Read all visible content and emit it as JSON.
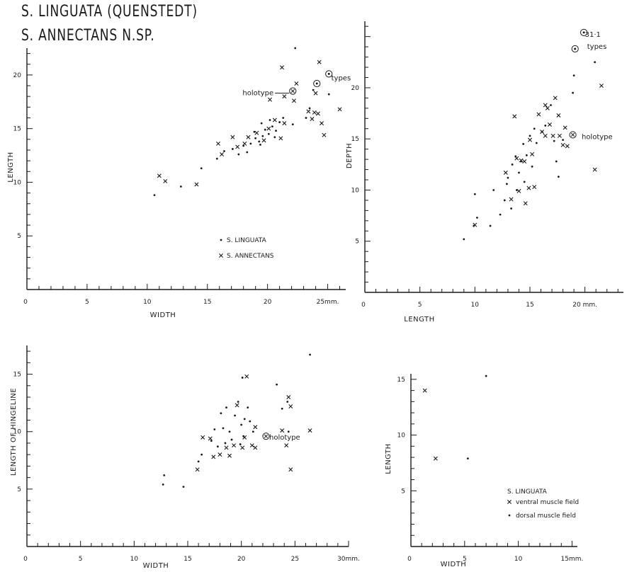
{
  "titles": {
    "line1": "S. LINGUATA (QUENSTEDT)",
    "line2": "S. ANNECTANS N.SP."
  },
  "colors": {
    "ink": "#1b1b1b",
    "background": "#ffffff"
  },
  "chart_data": [
    {
      "id": "width-length",
      "type": "scatter",
      "xlabel": "WIDTH",
      "ylabel": "LENGTH",
      "xlim": [
        0,
        26.5
      ],
      "ylim": [
        0,
        22.5
      ],
      "x_ticks": [
        "0",
        "5",
        "10",
        "15",
        "20",
        "25mm."
      ],
      "y_ticks": [
        "5",
        "10",
        "15",
        "20"
      ],
      "legend": [
        {
          "name": "S. LINGUATA",
          "marker": "dot"
        },
        {
          "name": "S. ANNECTANS",
          "marker": "cross"
        }
      ],
      "annotations": [
        {
          "text": "types",
          "x": 25.3,
          "y": 19.7
        },
        {
          "text": "holotype",
          "x": 20.5,
          "y": 18.3
        }
      ],
      "series": [
        {
          "name": "S. LINGUATA",
          "marker": "dot",
          "points": [
            [
              10.6,
              8.8
            ],
            [
              12.8,
              9.6
            ],
            [
              14.5,
              11.3
            ],
            [
              15.8,
              12.2
            ],
            [
              16.4,
              12.9
            ],
            [
              17.1,
              13.1
            ],
            [
              17.6,
              12.6
            ],
            [
              18.0,
              13.4
            ],
            [
              18.3,
              12.8
            ],
            [
              18.6,
              13.6
            ],
            [
              19.0,
              14.1
            ],
            [
              19.3,
              13.8
            ],
            [
              19.6,
              14.3
            ],
            [
              19.8,
              14.9
            ],
            [
              20.1,
              14.5
            ],
            [
              20.4,
              15.2
            ],
            [
              20.7,
              14.8
            ],
            [
              21.0,
              15.6
            ],
            [
              21.3,
              16.0
            ],
            [
              19.5,
              15.5
            ],
            [
              20.2,
              15.8
            ],
            [
              18.9,
              14.7
            ],
            [
              19.4,
              13.5
            ],
            [
              20.6,
              14.2
            ],
            [
              22.1,
              15.4
            ],
            [
              23.2,
              16.0
            ],
            [
              23.5,
              16.9
            ],
            [
              25.1,
              18.2
            ],
            [
              22.3,
              22.5
            ],
            [
              23.8,
              18.6
            ]
          ]
        },
        {
          "name": "S. ANNECTANS",
          "marker": "cross",
          "points": [
            [
              11.0,
              10.6
            ],
            [
              11.5,
              10.1
            ],
            [
              14.1,
              9.8
            ],
            [
              15.9,
              13.6
            ],
            [
              16.2,
              12.6
            ],
            [
              17.1,
              14.2
            ],
            [
              17.5,
              13.3
            ],
            [
              18.1,
              13.6
            ],
            [
              18.4,
              14.2
            ],
            [
              19.1,
              14.6
            ],
            [
              19.7,
              13.9
            ],
            [
              20.1,
              15.0
            ],
            [
              20.6,
              15.8
            ],
            [
              21.1,
              14.1
            ],
            [
              21.4,
              15.5
            ],
            [
              21.2,
              20.7
            ],
            [
              22.2,
              17.6
            ],
            [
              22.4,
              19.2
            ],
            [
              20.2,
              17.7
            ],
            [
              21.4,
              18.0
            ],
            [
              23.4,
              16.6
            ],
            [
              23.7,
              15.9
            ],
            [
              24.0,
              18.3
            ],
            [
              24.2,
              16.4
            ],
            [
              24.5,
              15.5
            ],
            [
              24.7,
              14.4
            ],
            [
              24.3,
              21.2
            ],
            [
              26.0,
              16.8
            ],
            [
              23.9,
              16.5
            ]
          ]
        },
        {
          "name": "types",
          "marker": "circled-dot",
          "points": [
            [
              25.1,
              20.1
            ],
            [
              24.1,
              19.2
            ]
          ]
        },
        {
          "name": "holotype",
          "marker": "circled-cross",
          "points": [
            [
              22.1,
              18.5
            ]
          ]
        }
      ]
    },
    {
      "id": "length-depth",
      "type": "scatter",
      "xlabel": "LENGTH",
      "ylabel": "DEPTH",
      "xlim": [
        0,
        23.5
      ],
      "ylim": [
        0,
        26.5
      ],
      "x_ticks": [
        "0",
        "5",
        "10",
        "15",
        "20 mm."
      ],
      "y_ticks": [
        "5",
        "10",
        "15",
        "20"
      ],
      "annotations": [
        {
          "text": "31·1",
          "x": 20.0,
          "y": 25.2
        },
        {
          "text": "types",
          "x": 20.2,
          "y": 24.0
        },
        {
          "text": "holotype",
          "x": 19.7,
          "y": 15.2
        }
      ],
      "series": [
        {
          "name": "S. LINGUATA",
          "marker": "dot",
          "points": [
            [
              9.0,
              5.2
            ],
            [
              9.9,
              6.5
            ],
            [
              10.2,
              7.3
            ],
            [
              10.0,
              9.6
            ],
            [
              11.4,
              6.5
            ],
            [
              11.7,
              10.0
            ],
            [
              12.3,
              7.6
            ],
            [
              12.7,
              9.0
            ],
            [
              12.9,
              10.6
            ],
            [
              13.0,
              11.2
            ],
            [
              13.3,
              8.2
            ],
            [
              13.4,
              12.5
            ],
            [
              13.7,
              13.3
            ],
            [
              13.8,
              10.0
            ],
            [
              14.0,
              11.7
            ],
            [
              14.2,
              12.8
            ],
            [
              14.4,
              14.5
            ],
            [
              14.5,
              10.8
            ],
            [
              14.7,
              13.4
            ],
            [
              15.0,
              15.3
            ],
            [
              15.2,
              12.3
            ],
            [
              15.4,
              16.0
            ],
            [
              15.6,
              14.6
            ],
            [
              16.1,
              15.7
            ],
            [
              16.4,
              16.3
            ],
            [
              16.9,
              18.3
            ],
            [
              17.2,
              14.8
            ],
            [
              17.4,
              12.8
            ],
            [
              17.6,
              11.3
            ],
            [
              18.0,
              14.9
            ],
            [
              18.9,
              19.5
            ],
            [
              19.0,
              21.2
            ],
            [
              20.9,
              22.5
            ]
          ]
        },
        {
          "name": "S. ANNECTANS",
          "marker": "cross",
          "points": [
            [
              10.0,
              6.6
            ],
            [
              12.8,
              11.7
            ],
            [
              13.3,
              9.1
            ],
            [
              13.6,
              17.2
            ],
            [
              13.8,
              13.1
            ],
            [
              14.0,
              9.9
            ],
            [
              14.2,
              12.9
            ],
            [
              14.5,
              12.8
            ],
            [
              14.6,
              8.7
            ],
            [
              14.9,
              10.2
            ],
            [
              15.0,
              14.9
            ],
            [
              15.2,
              13.5
            ],
            [
              15.4,
              10.3
            ],
            [
              15.8,
              17.4
            ],
            [
              16.1,
              15.7
            ],
            [
              16.4,
              15.3
            ],
            [
              16.6,
              18.0
            ],
            [
              16.8,
              16.4
            ],
            [
              17.1,
              15.3
            ],
            [
              17.6,
              17.3
            ],
            [
              17.7,
              15.3
            ],
            [
              18.0,
              14.4
            ],
            [
              18.2,
              16.1
            ],
            [
              18.4,
              14.3
            ],
            [
              20.9,
              12.0
            ],
            [
              21.5,
              20.2
            ],
            [
              17.3,
              19.0
            ],
            [
              16.4,
              18.3
            ]
          ]
        },
        {
          "name": "types",
          "marker": "circled-dot",
          "points": [
            [
              19.1,
              23.8
            ],
            [
              19.9,
              25.4
            ]
          ]
        },
        {
          "name": "holotype",
          "marker": "circled-cross",
          "points": [
            [
              18.9,
              15.4
            ]
          ]
        }
      ]
    },
    {
      "id": "width-hingeline",
      "type": "scatter",
      "xlabel": "WIDTH",
      "ylabel": "LENGTH OF HINGELINE",
      "xlim": [
        0,
        30
      ],
      "ylim": [
        0,
        17.5
      ],
      "x_ticks": [
        "0",
        "5",
        "10",
        "15",
        "20",
        "25",
        "30mm."
      ],
      "y_ticks": [
        "5",
        "10",
        "15"
      ],
      "annotations": [
        {
          "text": "holotype",
          "x": 22.6,
          "y": 9.5
        }
      ],
      "series": [
        {
          "name": "S. LINGUATA",
          "marker": "dot",
          "points": [
            [
              12.7,
              5.4
            ],
            [
              12.8,
              6.2
            ],
            [
              14.6,
              5.2
            ],
            [
              16.0,
              7.4
            ],
            [
              16.3,
              8.0
            ],
            [
              17.2,
              9.2
            ],
            [
              17.5,
              10.2
            ],
            [
              17.8,
              8.7
            ],
            [
              18.1,
              11.6
            ],
            [
              18.3,
              10.3
            ],
            [
              18.5,
              9.0
            ],
            [
              18.6,
              12.1
            ],
            [
              18.9,
              10.0
            ],
            [
              19.1,
              9.3
            ],
            [
              19.4,
              11.4
            ],
            [
              19.7,
              12.6
            ],
            [
              19.9,
              8.9
            ],
            [
              20.0,
              10.6
            ],
            [
              20.2,
              9.6
            ],
            [
              20.3,
              11.1
            ],
            [
              20.6,
              12.1
            ],
            [
              20.8,
              10.9
            ],
            [
              21.1,
              10.0
            ],
            [
              20.1,
              14.7
            ],
            [
              23.3,
              14.1
            ],
            [
              24.3,
              12.6
            ],
            [
              26.4,
              16.7
            ],
            [
              23.8,
              12.0
            ],
            [
              24.4,
              10.0
            ]
          ]
        },
        {
          "name": "S. ANNECTANS",
          "marker": "cross",
          "points": [
            [
              15.9,
              6.7
            ],
            [
              16.4,
              9.5
            ],
            [
              17.4,
              7.8
            ],
            [
              17.1,
              9.4
            ],
            [
              18.0,
              8.0
            ],
            [
              18.6,
              8.6
            ],
            [
              18.9,
              7.9
            ],
            [
              19.3,
              8.8
            ],
            [
              19.6,
              12.3
            ],
            [
              20.1,
              8.6
            ],
            [
              20.3,
              9.5
            ],
            [
              20.5,
              14.8
            ],
            [
              21.0,
              8.8
            ],
            [
              21.3,
              8.6
            ],
            [
              21.3,
              10.4
            ],
            [
              23.8,
              10.1
            ],
            [
              24.2,
              8.8
            ],
            [
              24.4,
              13.0
            ],
            [
              24.6,
              12.2
            ],
            [
              24.6,
              6.7
            ],
            [
              26.4,
              10.1
            ]
          ]
        },
        {
          "name": "holotype",
          "marker": "circled-cross",
          "points": [
            [
              22.3,
              9.6
            ]
          ]
        }
      ]
    },
    {
      "id": "muscle-field",
      "type": "scatter",
      "xlabel": "WIDTH",
      "ylabel": "LENGTH",
      "xlim": [
        0,
        15.5
      ],
      "ylim": [
        0,
        15.5
      ],
      "x_ticks": [
        "0",
        "5",
        "10",
        "15mm."
      ],
      "y_ticks": [
        "5",
        "10",
        "15"
      ],
      "legend_title": "S. LINGUATA",
      "legend": [
        {
          "name": "ventral muscle field",
          "marker": "cross"
        },
        {
          "name": "dorsal muscle field",
          "marker": "dot"
        }
      ],
      "series": [
        {
          "name": "ventral muscle field",
          "marker": "cross",
          "points": [
            [
              1.3,
              14.0
            ],
            [
              2.3,
              7.9
            ]
          ]
        },
        {
          "name": "dorsal muscle field",
          "marker": "dot",
          "points": [
            [
              5.3,
              7.9
            ],
            [
              7.0,
              15.3
            ]
          ]
        }
      ]
    }
  ]
}
